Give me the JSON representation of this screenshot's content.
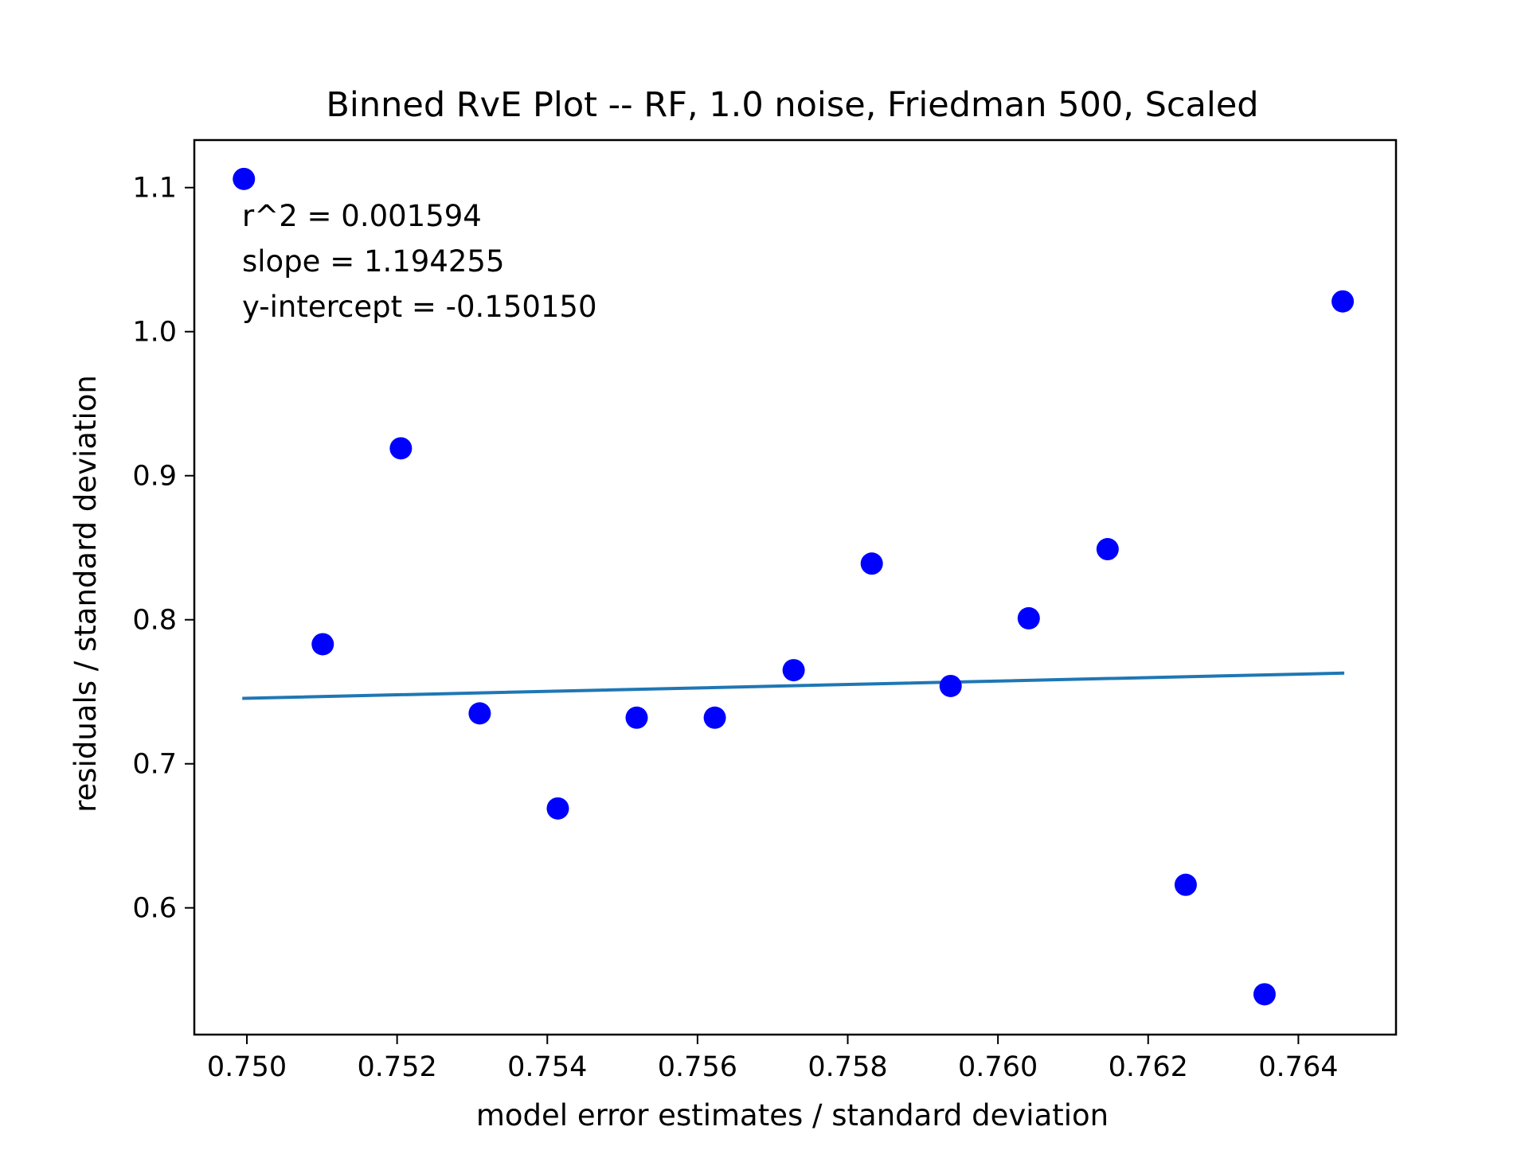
{
  "chart_data": {
    "type": "scatter",
    "title": "Binned RvE Plot -- RF, 1.0 noise, Friedman 500, Scaled",
    "xlabel": "model error estimates / standard deviation",
    "ylabel": "residuals / standard deviation",
    "xlim": [
      0.7493,
      0.7653
    ],
    "ylim": [
      0.512,
      1.133
    ],
    "x_ticks": [
      "0.750",
      "0.752",
      "0.754",
      "0.756",
      "0.758",
      "0.760",
      "0.762",
      "0.764"
    ],
    "x_tick_values": [
      0.75,
      0.752,
      0.754,
      0.756,
      0.758,
      0.76,
      0.762,
      0.764
    ],
    "y_ticks": [
      "0.6",
      "0.7",
      "0.8",
      "0.9",
      "1.0",
      "1.1"
    ],
    "y_tick_values": [
      0.6,
      0.7,
      0.8,
      0.9,
      1.0,
      1.1
    ],
    "grid": false,
    "series": [
      {
        "kind": "points",
        "color": "#0000ff",
        "x": [
          0.74996,
          0.75101,
          0.75205,
          0.7531,
          0.75414,
          0.75519,
          0.75623,
          0.75728,
          0.75832,
          0.75937,
          0.76041,
          0.76146,
          0.7625,
          0.76355,
          0.76459
        ],
        "y": [
          1.106,
          0.783,
          0.919,
          0.735,
          0.669,
          0.732,
          0.732,
          0.765,
          0.839,
          0.754,
          0.801,
          0.849,
          0.616,
          0.54,
          1.021
        ]
      },
      {
        "kind": "fit-line",
        "color": "#1f77b4",
        "x": [
          0.74996,
          0.76459
        ],
        "y": [
          0.74545,
          0.76293
        ]
      }
    ],
    "annotations": [
      "r^2 = 0.001594",
      "slope = 1.194255",
      "y-intercept = -0.150150"
    ]
  }
}
